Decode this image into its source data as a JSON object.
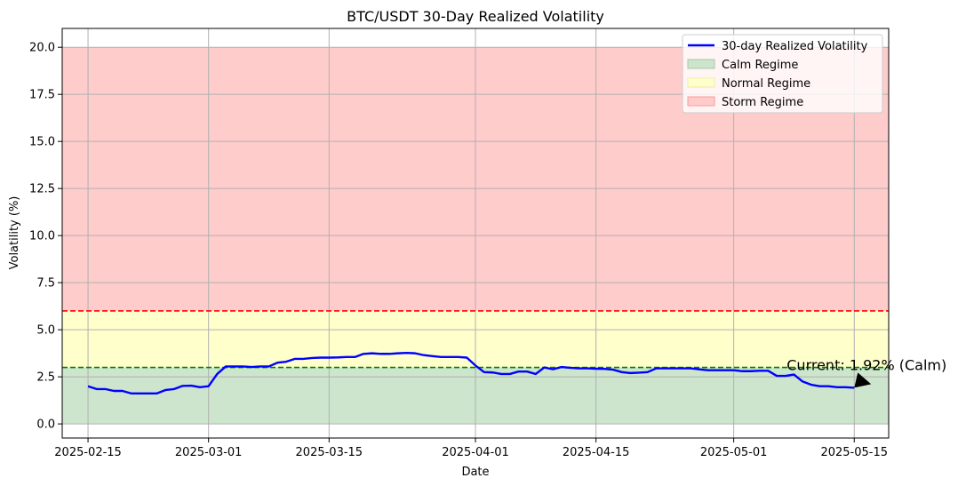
{
  "chart_data": {
    "type": "line",
    "title": "BTC/USDT 30-Day Realized Volatility",
    "xlabel": "Date",
    "ylabel": "Volatility (%)",
    "xlim": [
      "2025-02-12",
      "2025-05-19"
    ],
    "ylim": [
      -0.75,
      21
    ],
    "grid": true,
    "legend_location": "top-right",
    "x_ticks": [
      "2025-02-15",
      "2025-03-01",
      "2025-03-15",
      "2025-04-01",
      "2025-04-15",
      "2025-05-01",
      "2025-05-15"
    ],
    "y_ticks": [
      "0.0",
      "2.5",
      "5.0",
      "7.5",
      "10.0",
      "12.5",
      "15.0",
      "17.5",
      "20.0"
    ],
    "regimes": [
      {
        "name": "Calm Regime",
        "from": 0,
        "to": 3,
        "color": "#cde5cd"
      },
      {
        "name": "Normal Regime",
        "from": 3,
        "to": 6,
        "color": "#ffffcc"
      },
      {
        "name": "Storm Regime",
        "from": 6,
        "to": 20,
        "color": "#ffcccc"
      }
    ],
    "threshold_lines": [
      {
        "value": 3,
        "color": "#008000"
      },
      {
        "value": 6,
        "color": "#ff0000"
      }
    ],
    "series": [
      {
        "name": "30-day Realized Volatility",
        "color": "#0000ff",
        "x": [
          "2025-02-15",
          "2025-02-16",
          "2025-02-17",
          "2025-02-18",
          "2025-02-19",
          "2025-02-20",
          "2025-02-21",
          "2025-02-22",
          "2025-02-23",
          "2025-02-24",
          "2025-02-25",
          "2025-02-26",
          "2025-02-27",
          "2025-02-28",
          "2025-03-01",
          "2025-03-02",
          "2025-03-03",
          "2025-03-04",
          "2025-03-05",
          "2025-03-06",
          "2025-03-07",
          "2025-03-08",
          "2025-03-09",
          "2025-03-10",
          "2025-03-11",
          "2025-03-12",
          "2025-03-13",
          "2025-03-14",
          "2025-03-15",
          "2025-03-16",
          "2025-03-17",
          "2025-03-18",
          "2025-03-19",
          "2025-03-20",
          "2025-03-21",
          "2025-03-22",
          "2025-03-23",
          "2025-03-24",
          "2025-03-25",
          "2025-03-26",
          "2025-03-27",
          "2025-03-28",
          "2025-03-29",
          "2025-03-30",
          "2025-03-31",
          "2025-04-01",
          "2025-04-02",
          "2025-04-03",
          "2025-04-04",
          "2025-04-05",
          "2025-04-06",
          "2025-04-07",
          "2025-04-08",
          "2025-04-09",
          "2025-04-10",
          "2025-04-11",
          "2025-04-12",
          "2025-04-13",
          "2025-04-14",
          "2025-04-15",
          "2025-04-16",
          "2025-04-17",
          "2025-04-18",
          "2025-04-19",
          "2025-04-20",
          "2025-04-21",
          "2025-04-22",
          "2025-04-23",
          "2025-04-24",
          "2025-04-25",
          "2025-04-26",
          "2025-04-27",
          "2025-04-28",
          "2025-04-29",
          "2025-04-30",
          "2025-05-01",
          "2025-05-02",
          "2025-05-03",
          "2025-05-04",
          "2025-05-05",
          "2025-05-06",
          "2025-05-07",
          "2025-05-08",
          "2025-05-09",
          "2025-05-10",
          "2025-05-11",
          "2025-05-12",
          "2025-05-13",
          "2025-05-14",
          "2025-05-15"
        ],
        "values": [
          2.0,
          1.85,
          1.85,
          1.75,
          1.75,
          1.62,
          1.62,
          1.62,
          1.62,
          1.8,
          1.85,
          2.02,
          2.03,
          1.95,
          2.0,
          2.65,
          3.05,
          3.05,
          3.05,
          3.02,
          3.05,
          3.05,
          3.25,
          3.3,
          3.45,
          3.45,
          3.5,
          3.52,
          3.52,
          3.53,
          3.55,
          3.55,
          3.72,
          3.75,
          3.72,
          3.72,
          3.75,
          3.77,
          3.75,
          3.65,
          3.6,
          3.55,
          3.55,
          3.55,
          3.52,
          3.1,
          2.75,
          2.73,
          2.65,
          2.65,
          2.78,
          2.78,
          2.65,
          3.0,
          2.9,
          3.02,
          2.98,
          2.95,
          2.95,
          2.93,
          2.92,
          2.88,
          2.75,
          2.7,
          2.72,
          2.75,
          2.95,
          2.95,
          2.95,
          2.95,
          2.95,
          2.9,
          2.85,
          2.85,
          2.85,
          2.85,
          2.8,
          2.8,
          2.82,
          2.82,
          2.55,
          2.55,
          2.62,
          2.25,
          2.08,
          2.0,
          2.0,
          1.95,
          1.95,
          1.92
        ]
      }
    ],
    "annotation": {
      "text": "Current: 1.92% (Calm)",
      "x": "2025-05-15",
      "y": 1.92
    }
  }
}
